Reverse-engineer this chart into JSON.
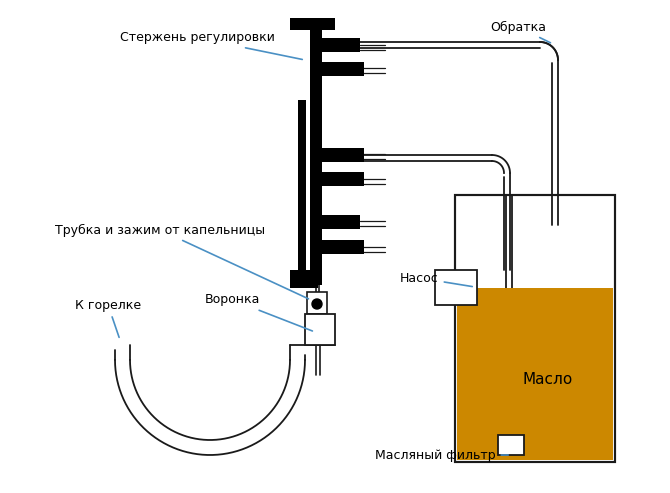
{
  "bg_color": "#ffffff",
  "line_color": "#1a1a1a",
  "oil_color": "#cc8800",
  "annotation_color": "#4a90c4",
  "labels": {
    "sterjen": "Стержень регулировки",
    "obratka": "Обратка",
    "trubka": "Трубка и зажим от капельницы",
    "k_gorelke": "К горелке",
    "voronka": "Воронка",
    "nasos": "Насос",
    "maslo": "Масло",
    "maslyany_filtr": "Масляный фильтр"
  }
}
